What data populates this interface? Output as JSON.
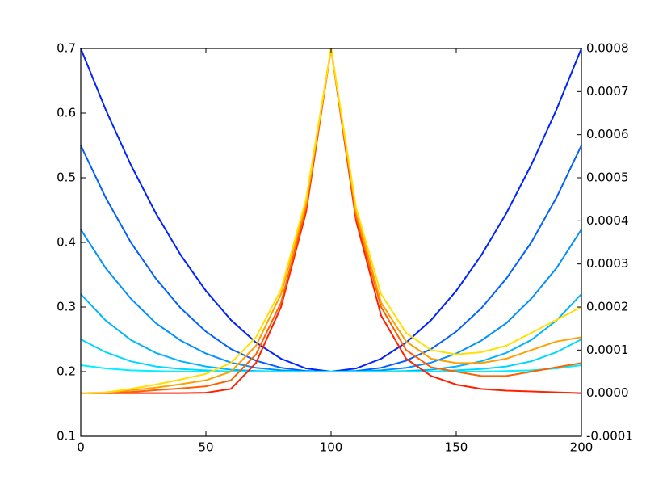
{
  "chart_data": {
    "type": "line",
    "x": [
      0,
      10,
      20,
      30,
      40,
      50,
      60,
      70,
      80,
      90,
      100,
      110,
      120,
      130,
      140,
      150,
      160,
      170,
      180,
      190,
      200
    ],
    "xlim": [
      0,
      200
    ],
    "xticks": [
      0,
      50,
      100,
      150,
      200
    ],
    "ylim": [
      0.1,
      0.7
    ],
    "yticks": [
      0.1,
      0.2,
      0.3,
      0.4,
      0.5,
      0.6,
      0.7
    ],
    "y2lim": [
      -0.0001,
      0.0008
    ],
    "y2ticks": [
      -0.0001,
      {
        "value": 0,
        "label": "0.0000"
      },
      0.0001,
      0.0002,
      0.0003,
      0.0004,
      0.0005,
      0.0006,
      0.0007,
      0.0008
    ],
    "series": [
      {
        "color": "#0022ff",
        "values": [
          0.7,
          0.605,
          0.52,
          0.445,
          0.38,
          0.325,
          0.28,
          0.245,
          0.22,
          0.205,
          0.2,
          0.205,
          0.22,
          0.245,
          0.28,
          0.325,
          0.38,
          0.445,
          0.52,
          0.605,
          0.7
        ]
      },
      {
        "color": "#0060ff",
        "values": [
          0.55,
          0.469,
          0.4,
          0.344,
          0.298,
          0.262,
          0.235,
          0.217,
          0.206,
          0.201,
          0.2,
          0.201,
          0.206,
          0.217,
          0.235,
          0.262,
          0.298,
          0.344,
          0.4,
          0.469,
          0.55
        ]
      },
      {
        "color": "#0090ff",
        "values": [
          0.42,
          0.36,
          0.313,
          0.275,
          0.248,
          0.228,
          0.214,
          0.206,
          0.202,
          0.2,
          0.2,
          0.2,
          0.202,
          0.206,
          0.214,
          0.228,
          0.248,
          0.275,
          0.313,
          0.36,
          0.42
        ]
      },
      {
        "color": "#00b4ff",
        "values": [
          0.32,
          0.279,
          0.249,
          0.229,
          0.216,
          0.208,
          0.203,
          0.201,
          0.2,
          0.2,
          0.2,
          0.2,
          0.2,
          0.201,
          0.203,
          0.208,
          0.216,
          0.229,
          0.249,
          0.279,
          0.32
        ]
      },
      {
        "color": "#00d8ff",
        "values": [
          0.25,
          0.23,
          0.216,
          0.208,
          0.204,
          0.202,
          0.2,
          0.2,
          0.2,
          0.2,
          0.2,
          0.2,
          0.2,
          0.2,
          0.2,
          0.202,
          0.204,
          0.208,
          0.216,
          0.23,
          0.25
        ]
      },
      {
        "color": "#00f0ff",
        "values": [
          0.21,
          0.205,
          0.202,
          0.201,
          0.2,
          0.2,
          0.2,
          0.2,
          0.2,
          0.2,
          0.2,
          0.2,
          0.2,
          0.2,
          0.2,
          0.2,
          0.2,
          0.201,
          0.202,
          0.205,
          0.21
        ]
      },
      {
        "color": "#ff2000",
        "axis": "y2",
        "values": [
          0,
          0,
          0,
          0,
          0,
          1e-06,
          1e-05,
          7e-05,
          0.0002,
          0.00042,
          0.0008,
          0.0004,
          0.00018,
          8e-05,
          4e-05,
          2e-05,
          1e-05,
          6e-06,
          4e-06,
          2e-06,
          0
        ]
      },
      {
        "color": "#ff6000",
        "axis": "y2",
        "values": [
          0,
          1e-06,
          3e-06,
          7e-06,
          1.1e-05,
          1.6e-05,
          3e-05,
          9e-05,
          0.00021,
          0.00043,
          0.0008,
          0.00041,
          0.0002,
          0.0001,
          6e-05,
          5e-05,
          4e-05,
          4e-05,
          5e-05,
          6e-05,
          7e-05
        ]
      },
      {
        "color": "#ffa000",
        "axis": "y2",
        "values": [
          0,
          1e-06,
          7e-06,
          1.3e-05,
          2.1e-05,
          3e-05,
          5e-05,
          0.00011,
          0.00023,
          0.00044,
          0.0008,
          0.00042,
          0.00021,
          0.00012,
          8e-05,
          7e-05,
          7e-05,
          8e-05,
          0.0001,
          0.00012,
          0.00013
        ]
      },
      {
        "color": "#ffe000",
        "axis": "y2",
        "values": [
          0,
          2e-06,
          1e-05,
          2e-05,
          3.2e-05,
          4.5e-05,
          7e-05,
          0.00013,
          0.00024,
          0.00045,
          0.0008,
          0.00043,
          0.00023,
          0.00014,
          0.0001,
          9e-05,
          9.5e-05,
          0.00011,
          0.00014,
          0.00017,
          0.0002
        ]
      }
    ]
  }
}
